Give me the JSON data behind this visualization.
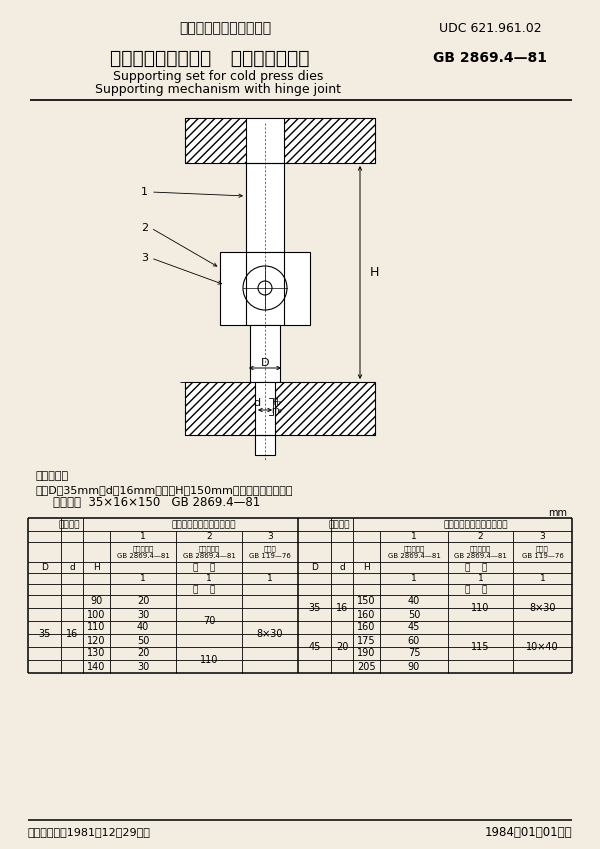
{
  "title_cn": "中华人民共和国国家标准",
  "udc": "UDC 621.961.02",
  "std_num": "GB 2869.4—81",
  "main_title_cn": "冷冲模限位支承装置   铰链式支承装置",
  "subtitle_en1": "Supporting set for cold press dies",
  "subtitle_en2": "Supporting mechanism with hinge joint",
  "note_label": "标记示例：",
  "note_line1": "直径D＝35mm、d＝16mm、高度H＝150mm的铰链式支承装置：",
  "note_line2": "支承装置  35×16×150   GB 2869.4—81",
  "unit_label": "mm",
  "footer_left": "国家标准总局1981－12－29发布",
  "footer_right": "1984－01－01实施",
  "bg_color": "#f2ede0"
}
